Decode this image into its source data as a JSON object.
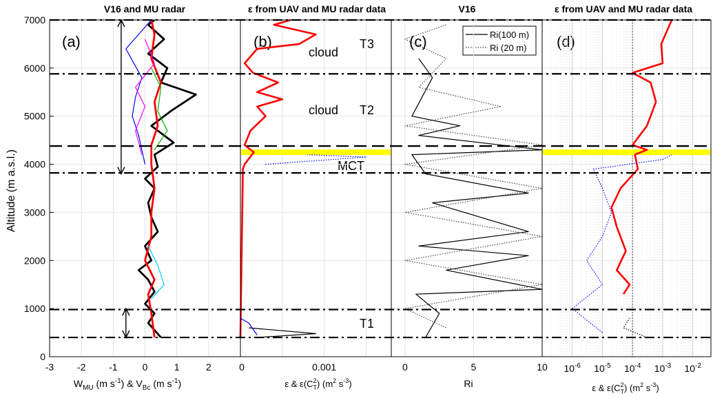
{
  "figure": {
    "shared_ylabel": "Altitude (m a.s.l.)",
    "y_ticks": [
      "0",
      "1000",
      "2000",
      "3000",
      "4000",
      "5000",
      "6000",
      "7000"
    ]
  },
  "panels": [
    {
      "key": "a",
      "title": "V16 and MU radar",
      "label": "(a)",
      "xlabel": "W_MU (m s-1) & V_Bc (m s-1)",
      "xlabel_main": "W",
      "xlabel_sub1": "MU",
      "xlabel_mid": " (m s",
      "xlabel_sup1": "-1",
      "xlabel_mid2": ") & V",
      "xlabel_sub2": "Bc",
      "xlabel_mid3": " (m s",
      "xlabel_sup2": "-1",
      "xlabel_end": ")",
      "x_ticks": [
        "-3",
        "-2",
        "-1",
        "0",
        "1",
        "2"
      ]
    },
    {
      "key": "b",
      "title": "ε from UAV and MU radar data",
      "label": "(b)",
      "xlabel": "ε & ε(CT2) (m2 s-3)",
      "x_ticks": [
        "0",
        "0.001"
      ],
      "annotations": [
        "cloud",
        "T3",
        "cloud",
        "T2",
        "MCT",
        "T1"
      ]
    },
    {
      "key": "c",
      "title": "V16",
      "label": "(c)",
      "xlabel": "Ri",
      "x_ticks": [
        "0",
        "5",
        "10"
      ],
      "legend": [
        "Ri(100 m)",
        "Ri (20 m)"
      ]
    },
    {
      "key": "d",
      "title": "ε from UAV and MU radar data",
      "label": "(d)",
      "xlabel": "ε & ε(CT2) (m2 s-3)",
      "x_ticks": [
        "10-6",
        "10-5",
        "10-4",
        "10-3",
        "10-2"
      ]
    }
  ],
  "chart_data": [
    {
      "type": "line",
      "panel": "a",
      "xlim": [
        -3,
        3
      ],
      "ylim": [
        0,
        7000
      ],
      "series": [
        {
          "style": "thick-black",
          "color": "#000000",
          "points": [
            [
              0.5,
              400
            ],
            [
              0.1,
              700
            ],
            [
              0.3,
              900
            ],
            [
              0.0,
              1100
            ],
            [
              0.3,
              1350
            ],
            [
              0.1,
              1600
            ],
            [
              -0.2,
              1800
            ],
            [
              0.2,
              2000
            ],
            [
              0.0,
              2300
            ],
            [
              0.4,
              2600
            ],
            [
              0.2,
              2900
            ],
            [
              0.1,
              3200
            ],
            [
              0.3,
              3500
            ],
            [
              0.0,
              3700
            ],
            [
              0.4,
              3950
            ],
            [
              0.3,
              4200
            ],
            [
              0.9,
              4450
            ],
            [
              0.2,
              4800
            ],
            [
              0.8,
              5100
            ],
            [
              1.6,
              5450
            ],
            [
              0.5,
              5700
            ],
            [
              0.7,
              6000
            ],
            [
              0.1,
              6300
            ],
            [
              0.6,
              6600
            ],
            [
              0.1,
              6900
            ],
            [
              0.3,
              7000
            ]
          ]
        },
        {
          "style": "thick-red",
          "color": "#ff0000",
          "points": [
            [
              0.3,
              400
            ],
            [
              0.2,
              900
            ],
            [
              0.1,
              1300
            ],
            [
              0.3,
              1600
            ],
            [
              0.0,
              2000
            ],
            [
              0.2,
              2500
            ],
            [
              0.2,
              3000
            ],
            [
              0.3,
              3500
            ],
            [
              0.2,
              4000
            ],
            [
              0.2,
              4400
            ],
            [
              0.4,
              4800
            ],
            [
              0.3,
              5300
            ],
            [
              0.5,
              5700
            ],
            [
              0.2,
              6200
            ],
            [
              0.3,
              6700
            ],
            [
              0.2,
              7000
            ]
          ]
        },
        {
          "style": "thin-blue",
          "color": "#0000ff",
          "points": [
            [
              0.0,
              4000
            ],
            [
              -0.2,
              4600
            ],
            [
              -0.4,
              5000
            ],
            [
              -0.3,
              5400
            ],
            [
              -0.1,
              5800
            ],
            [
              -0.6,
              6400
            ],
            [
              0.2,
              7000
            ]
          ]
        },
        {
          "style": "thin-magenta",
          "color": "#ff00ff",
          "points": [
            [
              -0.1,
              4200
            ],
            [
              -0.3,
              4700
            ],
            [
              0.0,
              5200
            ],
            [
              -0.3,
              5600
            ],
            [
              0.3,
              6100
            ],
            [
              0.0,
              6600
            ]
          ]
        },
        {
          "style": "thin-cyan",
          "color": "#00d0ff",
          "points": [
            [
              0.2,
              1200
            ],
            [
              0.6,
              1500
            ],
            [
              0.4,
              1900
            ],
            [
              0.1,
              2300
            ]
          ]
        },
        {
          "style": "thin-green",
          "color": "#00b000",
          "points": [
            [
              0.3,
              4300
            ],
            [
              0.7,
              4700
            ],
            [
              0.4,
              5100
            ],
            [
              0.5,
              5600
            ],
            [
              0.2,
              6000
            ]
          ]
        }
      ],
      "double_arrows": [
        {
          "x": -0.75,
          "y1": 3800,
          "y2": 7000
        },
        {
          "x": -0.6,
          "y1": 400,
          "y2": 1000
        }
      ]
    },
    {
      "type": "line",
      "panel": "b",
      "xlim": [
        0,
        0.0018
      ],
      "ylim": [
        0,
        7000
      ],
      "series": [
        {
          "style": "red",
          "color": "#ff0000",
          "points": [
            [
              0.0,
              400
            ],
            [
              3e-05,
              3900
            ],
            [
              5e-05,
              4000
            ],
            [
              0.00016,
              4250
            ],
            [
              5e-05,
              4400
            ],
            [
              0.00012,
              4700
            ],
            [
              0.0003,
              5000
            ],
            [
              0.0002,
              5200
            ],
            [
              0.0005,
              5350
            ],
            [
              0.0002,
              5500
            ],
            [
              0.00045,
              5700
            ],
            [
              0.00015,
              5900
            ],
            [
              5e-05,
              6100
            ],
            [
              0.0002,
              6400
            ],
            [
              0.0007,
              6500
            ],
            [
              0.0009,
              6700
            ],
            [
              0.0004,
              6900
            ],
            [
              0.0006,
              7000
            ]
          ]
        },
        {
          "style": "black",
          "color": "#000000",
          "points": [
            [
              0.0002,
              400
            ],
            [
              0.0009,
              480
            ],
            [
              0.0001,
              600
            ]
          ]
        },
        {
          "style": "blue",
          "color": "#0000ff",
          "points": [
            [
              0.0002,
              450
            ],
            [
              0.0001,
              700
            ],
            [
              0.0,
              800
            ]
          ]
        },
        {
          "style": "blue-dotted",
          "color": "#0000ff",
          "points": [
            [
              0.0003,
              4000
            ],
            [
              0.0015,
              4150
            ],
            [
              0.0008,
              4200
            ]
          ]
        }
      ]
    },
    {
      "type": "line",
      "panel": "c",
      "xlim": [
        -1,
        10
      ],
      "ylim": [
        0,
        7000
      ],
      "series": [
        {
          "name": "Ri(100 m)",
          "style": "solid",
          "color": "#000000",
          "points": [
            [
              1.5,
              400
            ],
            [
              2.5,
              900
            ],
            [
              0.8,
              1300
            ],
            [
              10,
              1400
            ],
            [
              3,
              1800
            ],
            [
              9,
              2100
            ],
            [
              1,
              2300
            ],
            [
              9,
              2600
            ],
            [
              2,
              3200
            ],
            [
              9,
              3400
            ],
            [
              1.5,
              3800
            ],
            [
              0.5,
              4200
            ],
            [
              10,
              4300
            ],
            [
              1,
              4600
            ],
            [
              4,
              4800
            ],
            [
              0.5,
              5000
            ],
            [
              2,
              5800
            ],
            [
              1,
              6200
            ]
          ]
        },
        {
          "name": "Ri (20 m)",
          "style": "dotted",
          "color": "#444444",
          "points": [
            [
              3,
              600
            ],
            [
              0,
              1000
            ],
            [
              10,
              1500
            ],
            [
              0,
              2000
            ],
            [
              10,
              2500
            ],
            [
              0,
              3000
            ],
            [
              10,
              3500
            ],
            [
              0,
              4000
            ],
            [
              10,
              4400
            ],
            [
              0,
              4800
            ],
            [
              7,
              5200
            ],
            [
              1,
              5600
            ],
            [
              3,
              6200
            ],
            [
              0,
              6600
            ],
            [
              3,
              6900
            ]
          ]
        }
      ]
    },
    {
      "type": "line",
      "panel": "d",
      "xscale": "log",
      "xlim": [
        1e-07,
        0.04
      ],
      "ylim": [
        0,
        7000
      ],
      "series": [
        {
          "style": "red",
          "color": "#ff0000",
          "points": [
            [
              5e-05,
              1300
            ],
            [
              8e-05,
              1500
            ],
            [
              3e-05,
              1800
            ],
            [
              6e-05,
              2200
            ],
            [
              3e-05,
              2700
            ],
            [
              2e-05,
              3100
            ],
            [
              4e-05,
              3500
            ],
            [
              0.00015,
              3900
            ],
            [
              0.00012,
              4200
            ],
            [
              0.0003,
              4300
            ],
            [
              0.0001,
              4400
            ],
            [
              0.0003,
              4800
            ],
            [
              0.0006,
              5300
            ],
            [
              0.0004,
              5700
            ],
            [
              0.0001,
              5900
            ],
            [
              0.001,
              6100
            ],
            [
              0.0009,
              6500
            ],
            [
              0.002,
              7000
            ]
          ]
        },
        {
          "style": "blue-dotted",
          "color": "#0000ff",
          "points": [
            [
              1e-05,
              500
            ],
            [
              1e-06,
              1000
            ],
            [
              1e-05,
              1500
            ],
            [
              3e-06,
              2000
            ],
            [
              1e-05,
              2500
            ],
            [
              2e-05,
              3000
            ],
            [
              1e-05,
              3500
            ],
            [
              5e-06,
              3900
            ],
            [
              0.001,
              4100
            ],
            [
              0.002,
              4200
            ]
          ]
        },
        {
          "style": "black-dotted",
          "color": "#000000",
          "points": [
            [
              0.0003,
              400
            ],
            [
              5e-05,
              600
            ],
            [
              8e-05,
              800
            ]
          ]
        }
      ]
    }
  ],
  "layers": {
    "dash_dot_altitudes": [
      400,
      980,
      3820,
      5880,
      7000
    ],
    "dashed_altitude": 4380,
    "yellow_band_altitude": 4250,
    "yellow_panels": [
      "b",
      "d"
    ],
    "d_vertical_ref": 0.0001
  }
}
